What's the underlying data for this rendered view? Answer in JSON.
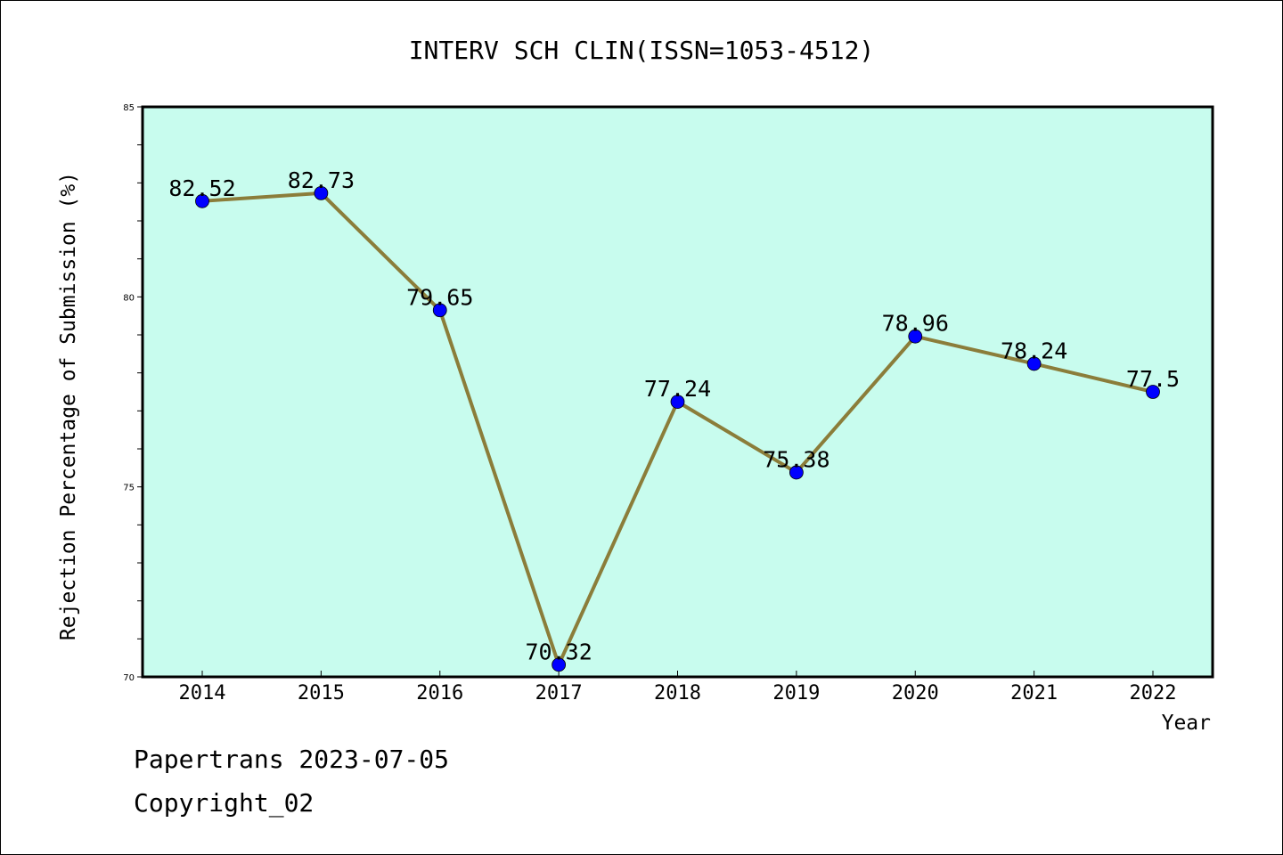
{
  "chart_data": {
    "type": "line",
    "title": "INTERV SCH CLIN(ISSN=1053-4512)",
    "xlabel": "Year",
    "ylabel": "Rejection Percentage of Submission (%)",
    "categories": [
      "2014",
      "2015",
      "2016",
      "2017",
      "2018",
      "2019",
      "2020",
      "2021",
      "2022"
    ],
    "series": [
      {
        "values": [
          82.52,
          82.73,
          79.65,
          70.32,
          77.24,
          75.38,
          78.96,
          78.24,
          77.5
        ]
      }
    ],
    "data_labels": [
      "82.52",
      "82.73",
      "79.65",
      "70.32",
      "77.24",
      "75.38",
      "78.96",
      "78.24",
      "77.5"
    ],
    "ylim": [
      70,
      85
    ],
    "yticks": [
      70,
      75,
      80,
      85
    ],
    "ytick_labels": [
      "70",
      "75",
      "80",
      "85"
    ],
    "grid": false,
    "colors": {
      "plot_background": "#c8fcee",
      "line": "#8b7d3a",
      "marker": "#0000ff"
    }
  },
  "footer": {
    "line1": "Papertrans 2023-07-05",
    "line2": "Copyright_02"
  }
}
